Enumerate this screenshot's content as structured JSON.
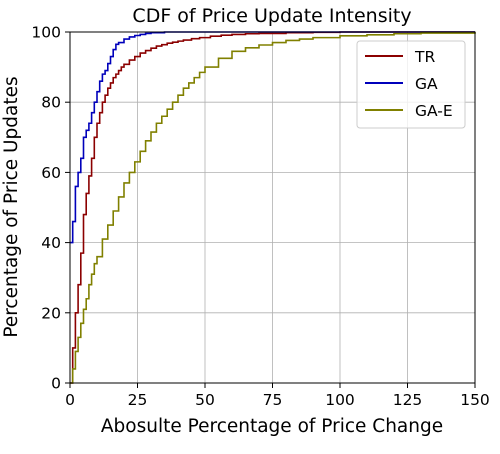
{
  "chart_data": {
    "type": "line",
    "title": "CDF of Price Update Intensity",
    "xlabel": "Abosulte Percentage of Price Change",
    "ylabel": "Percentage of Price Updates",
    "xlim": [
      0,
      150
    ],
    "ylim": [
      0,
      100
    ],
    "xticks": [
      0,
      25,
      50,
      75,
      100,
      125,
      150
    ],
    "yticks": [
      0,
      20,
      40,
      60,
      80,
      100
    ],
    "grid": true,
    "legend_position": "top-right",
    "series": [
      {
        "name": "TR",
        "color": "#8b0000",
        "x": [
          0,
          1,
          2,
          3,
          4,
          5,
          6,
          7,
          8,
          9,
          10,
          11,
          12,
          13,
          14,
          15,
          16,
          17,
          18,
          19,
          20,
          22,
          24,
          26,
          28,
          30,
          32,
          34,
          36,
          38,
          40,
          42,
          45,
          48,
          52,
          56,
          60,
          65,
          70,
          80,
          90,
          100,
          150
        ],
        "y": [
          0,
          10,
          20,
          28,
          37,
          48,
          54,
          59,
          64,
          70,
          74,
          77,
          80,
          82,
          84,
          85.5,
          87,
          88,
          89,
          90,
          90.8,
          92,
          93,
          94,
          94.7,
          95.4,
          96,
          96.4,
          96.8,
          97.1,
          97.4,
          97.7,
          98.1,
          98.4,
          98.8,
          99.1,
          99.3,
          99.5,
          99.6,
          99.8,
          99.9,
          100,
          100
        ]
      },
      {
        "name": "GA",
        "color": "#0000bb",
        "x": [
          0,
          1,
          2,
          3,
          4,
          5,
          6,
          7,
          8,
          9,
          10,
          11,
          12,
          13,
          14,
          15,
          16,
          17,
          18,
          20,
          22,
          24,
          26,
          28,
          30,
          35,
          150
        ],
        "y": [
          40,
          46,
          56,
          60,
          64,
          70,
          72,
          74,
          77,
          80,
          83,
          86,
          88,
          89,
          91,
          93,
          95,
          96.5,
          97,
          98,
          98.6,
          99,
          99.3,
          99.6,
          99.8,
          100,
          100
        ]
      },
      {
        "name": "GA-E",
        "color": "#808000",
        "x": [
          0,
          1,
          2,
          3,
          4,
          5,
          6,
          7,
          8,
          9,
          10,
          12,
          14,
          16,
          18,
          20,
          22,
          24,
          26,
          28,
          30,
          32,
          34,
          36,
          38,
          40,
          42,
          44,
          46,
          48,
          50,
          55,
          60,
          65,
          70,
          75,
          80,
          85,
          90,
          100,
          110,
          120,
          130,
          150
        ],
        "y": [
          0,
          4,
          9,
          13,
          17,
          21,
          24,
          28,
          31,
          34,
          36,
          41,
          45,
          49,
          53,
          57,
          60,
          63,
          66,
          69,
          71.5,
          74,
          76,
          78,
          80,
          82,
          84,
          85.5,
          87,
          88.5,
          90,
          92.5,
          94.5,
          95.5,
          96.3,
          97,
          97.6,
          98,
          98.4,
          98.9,
          99.2,
          99.5,
          99.7,
          100
        ]
      }
    ]
  }
}
